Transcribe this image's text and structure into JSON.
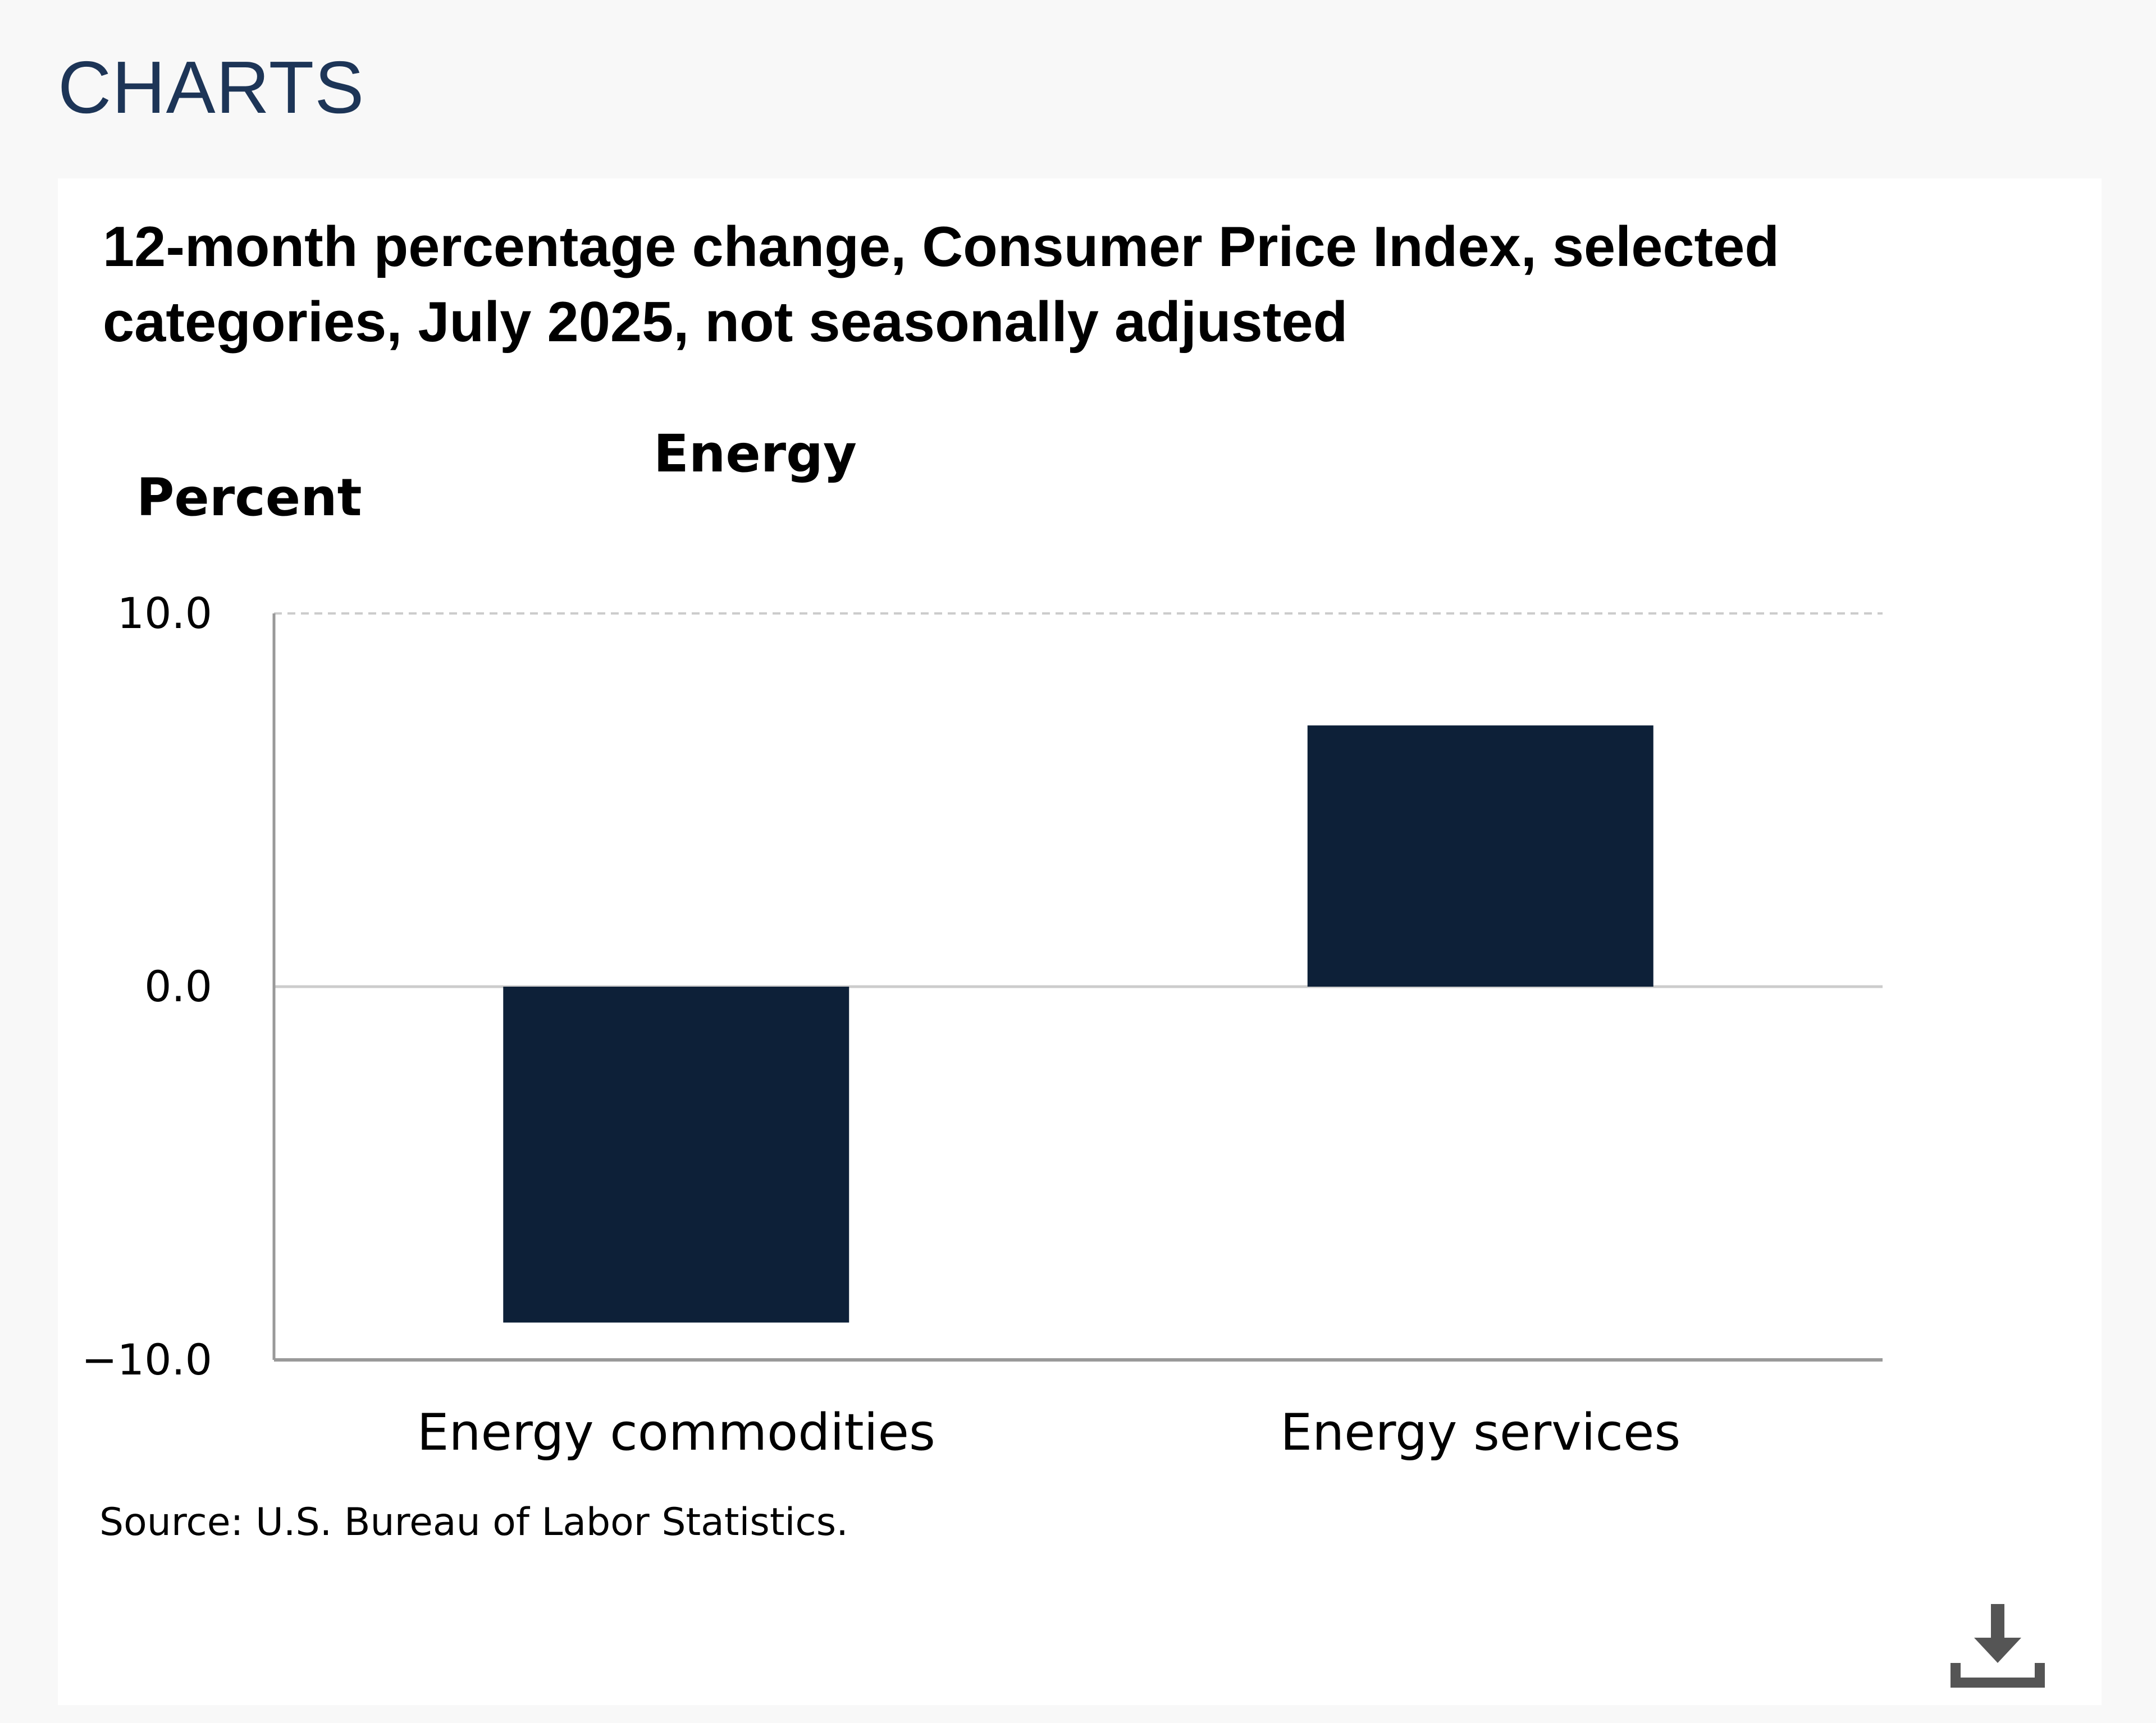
{
  "header": {
    "section_title": "CHARTS"
  },
  "chart_card": {
    "source": "Source: U.S. Bureau of Labor Statistics.",
    "download_icon": "download-icon"
  },
  "colors": {
    "bar": "#0d2038",
    "section_title": "#1d3557",
    "axis": "#999999",
    "grid": "#cccccc"
  },
  "chart_data": {
    "type": "bar",
    "title": "12-month percentage change, Consumer Price Index, selected categories, July 2025, not seasonally adjusted",
    "subtitle": "Energy",
    "ylabel": "Percent",
    "xlabel": "",
    "categories": [
      "Energy commodities",
      "Energy services"
    ],
    "values": [
      -9.0,
      7.0
    ],
    "ylim": [
      -10.0,
      10.0
    ],
    "yticks": [
      10.0,
      0.0,
      -10.0
    ],
    "ytick_labels": [
      "10.0",
      "0.0",
      "−10.0"
    ],
    "grid": true
  }
}
